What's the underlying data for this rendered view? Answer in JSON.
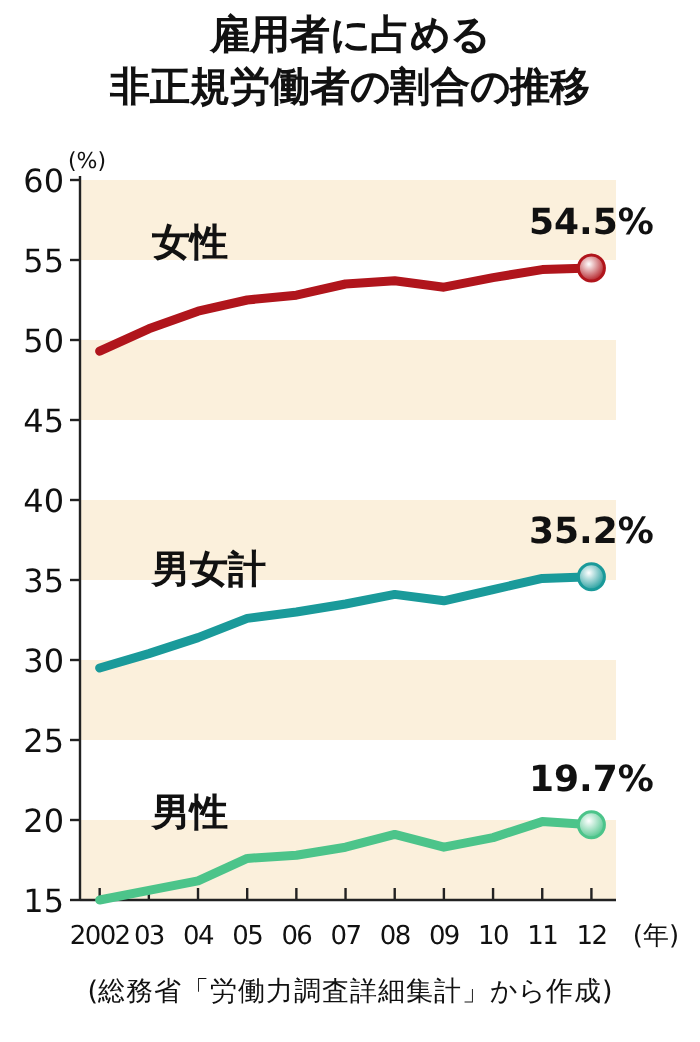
{
  "chart_data": {
    "type": "line",
    "title": "雇用者に占める",
    "subtitle": "非正規労働者の割合の推移",
    "xlabel": "(年)",
    "ylabel": "(%)",
    "x": [
      2002,
      2003,
      2004,
      2005,
      2006,
      2007,
      2008,
      2009,
      2010,
      2011,
      2012
    ],
    "series": [
      {
        "name": "女性",
        "color": "#b0151c",
        "values": [
          49.3,
          50.7,
          51.8,
          52.5,
          52.8,
          53.5,
          53.7,
          53.3,
          53.9,
          54.4,
          54.5
        ],
        "value_labels": [
          null,
          null,
          null,
          null,
          null,
          null,
          null,
          null,
          null,
          null,
          "54.5%"
        ]
      },
      {
        "name": "男女計",
        "color": "#1a9a9a",
        "values": [
          29.5,
          30.4,
          31.4,
          32.6,
          33.0,
          33.5,
          34.1,
          33.7,
          34.4,
          35.1,
          35.2
        ],
        "value_labels": [
          null,
          null,
          null,
          null,
          null,
          null,
          null,
          null,
          null,
          null,
          "35.2%"
        ]
      },
      {
        "name": "男性",
        "color": "#4cc48a",
        "values": [
          15.0,
          15.6,
          16.2,
          17.6,
          17.8,
          18.3,
          19.1,
          18.3,
          18.9,
          19.9,
          19.7
        ],
        "value_labels": [
          null,
          null,
          null,
          null,
          null,
          null,
          null,
          null,
          null,
          null,
          "19.7%"
        ]
      }
    ],
    "xlim": [
      2001.6,
      2012.5
    ],
    "ylim": [
      15,
      60
    ],
    "xticks": [
      2002,
      {
        "value": 2003,
        "label": "03"
      },
      {
        "value": 2004,
        "label": "04"
      },
      {
        "value": 2005,
        "label": "05"
      },
      {
        "value": 2006,
        "label": "06"
      },
      {
        "value": 2007,
        "label": "07"
      },
      {
        "value": 2008,
        "label": "08"
      },
      {
        "value": 2009,
        "label": "09"
      },
      {
        "value": 2010,
        "label": "10"
      },
      {
        "value": 2011,
        "label": "11"
      },
      {
        "value": 2012,
        "label": "12"
      }
    ],
    "yticks": [
      15,
      20,
      25,
      30,
      35,
      40,
      45,
      50,
      55,
      60
    ],
    "bands": [
      {
        "axis": "y",
        "from": 15,
        "to": 20,
        "color": "#fbf0dc"
      },
      {
        "axis": "y",
        "from": 25,
        "to": 30,
        "color": "#fbf0dc"
      },
      {
        "axis": "y",
        "from": 35,
        "to": 40,
        "color": "#fbf0dc"
      },
      {
        "axis": "y",
        "from": 45,
        "to": 50,
        "color": "#fbf0dc"
      },
      {
        "axis": "y",
        "from": 55,
        "to": 60,
        "color": "#fbf0dc"
      }
    ],
    "annotations": [
      "(総務省「労働力調査詳細集計」から作成)"
    ]
  }
}
